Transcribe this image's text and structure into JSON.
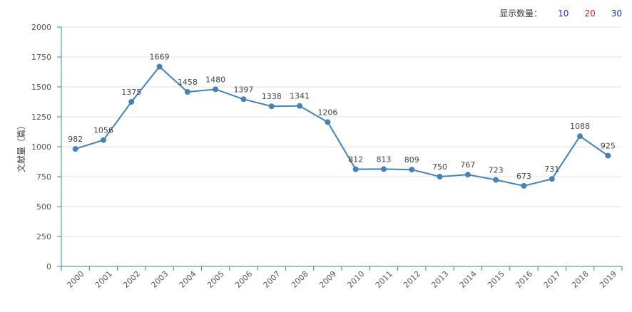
{
  "toolbar": {
    "label": "显示数量：",
    "options": [
      "10",
      "20",
      "30"
    ],
    "option_colors": [
      "#1a33cc",
      "#d91c1c",
      "#1a33cc"
    ]
  },
  "colors": {
    "line": "#4682b4",
    "axis": "#2f8f9d",
    "grid": "#e3e3e3"
  },
  "chart_data": {
    "type": "line",
    "ylabel": "文献量（篇）",
    "xlabel": "",
    "ylim": [
      0,
      2000
    ],
    "yticks": [
      0,
      250,
      500,
      750,
      1000,
      1250,
      1500,
      1750,
      2000
    ],
    "grid": true,
    "categories": [
      "2000",
      "2001",
      "2002",
      "2003",
      "2004",
      "2005",
      "2006",
      "2007",
      "2008",
      "2009",
      "2010",
      "2011",
      "2012",
      "2013",
      "2014",
      "2015",
      "2016",
      "2017",
      "2018",
      "2019"
    ],
    "values": [
      982,
      1056,
      1375,
      1669,
      1458,
      1480,
      1397,
      1338,
      1341,
      1206,
      812,
      813,
      809,
      750,
      767,
      723,
      673,
      731,
      1088,
      925
    ]
  }
}
